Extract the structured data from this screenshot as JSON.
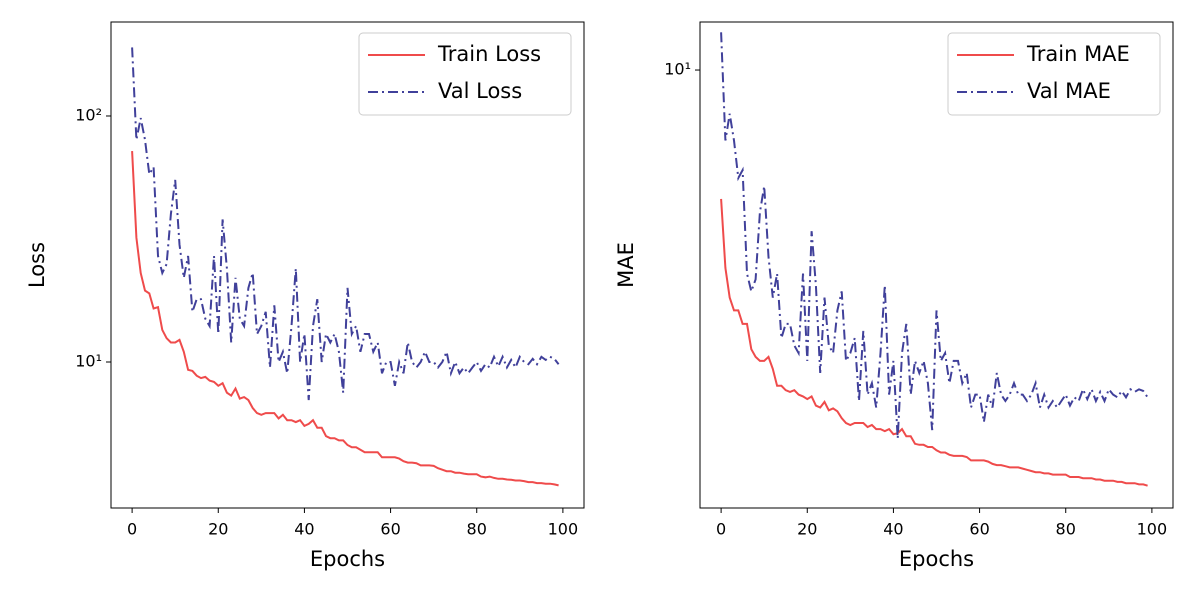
{
  "chart_data": [
    {
      "type": "line",
      "xlabel": "Epochs",
      "ylabel": "Loss",
      "log_y": true,
      "legend": "upper right",
      "xlim": [
        -4.9,
        104.9
      ],
      "ylim": [
        2.55,
        241
      ],
      "xticks": [
        0,
        20,
        40,
        60,
        80,
        100
      ],
      "yticks": [
        {
          "value": 10,
          "label": "10¹"
        },
        {
          "value": 100,
          "label": "10²"
        }
      ],
      "x": [
        0,
        1,
        2,
        3,
        4,
        5,
        6,
        7,
        8,
        9,
        10,
        11,
        12,
        13,
        14,
        15,
        16,
        17,
        18,
        19,
        20,
        21,
        22,
        23,
        24,
        25,
        26,
        27,
        28,
        29,
        30,
        31,
        32,
        33,
        34,
        35,
        36,
        37,
        38,
        39,
        40,
        41,
        42,
        43,
        44,
        45,
        46,
        47,
        48,
        49,
        50,
        51,
        52,
        53,
        54,
        55,
        56,
        57,
        58,
        59,
        60,
        61,
        62,
        63,
        64,
        65,
        66,
        67,
        68,
        69,
        70,
        71,
        72,
        73,
        74,
        75,
        76,
        77,
        78,
        79,
        80,
        81,
        82,
        83,
        84,
        85,
        86,
        87,
        88,
        89,
        90,
        91,
        92,
        93,
        94,
        95,
        96,
        97,
        98,
        99
      ],
      "series": [
        {
          "name": "Train Loss",
          "color": "#ef4b4b",
          "linestyle": "solid",
          "values": [
            72,
            32,
            23,
            19.5,
            19,
            16.5,
            16.7,
            13.5,
            12.5,
            12,
            12,
            12.3,
            11,
            9.3,
            9.2,
            8.8,
            8.6,
            8.7,
            8.4,
            8.3,
            8.0,
            8.2,
            7.5,
            7.3,
            7.8,
            7.1,
            7.2,
            7.0,
            6.5,
            6.2,
            6.1,
            6.2,
            6.2,
            6.2,
            5.9,
            6.1,
            5.8,
            5.8,
            5.7,
            5.8,
            5.5,
            5.6,
            5.8,
            5.4,
            5.4,
            5.0,
            4.9,
            4.9,
            4.8,
            4.8,
            4.6,
            4.5,
            4.5,
            4.4,
            4.3,
            4.3,
            4.3,
            4.3,
            4.1,
            4.1,
            4.1,
            4.1,
            4.05,
            3.95,
            3.9,
            3.9,
            3.88,
            3.8,
            3.8,
            3.8,
            3.78,
            3.7,
            3.65,
            3.6,
            3.6,
            3.55,
            3.55,
            3.52,
            3.5,
            3.5,
            3.5,
            3.42,
            3.4,
            3.42,
            3.38,
            3.35,
            3.35,
            3.33,
            3.32,
            3.3,
            3.3,
            3.28,
            3.25,
            3.25,
            3.22,
            3.22,
            3.2,
            3.2,
            3.18,
            3.15
          ]
        },
        {
          "name": "Val Loss",
          "color": "#40409a",
          "linestyle": "dashdot",
          "values": [
            190,
            80,
            98,
            80,
            58,
            62,
            27,
            23,
            25,
            40,
            55,
            30,
            22,
            27,
            16,
            18,
            18,
            15,
            14,
            27,
            13,
            38,
            24,
            12,
            22,
            15,
            14,
            20,
            23,
            13,
            14,
            16,
            9.5,
            17,
            10,
            11,
            9.0,
            14,
            24,
            10,
            13,
            7.0,
            14,
            18,
            10,
            13,
            12,
            13,
            11,
            7.5,
            20,
            13,
            14,
            11,
            13,
            13,
            11,
            12,
            9,
            10,
            10,
            8,
            10,
            9,
            12,
            10,
            9.5,
            10,
            11,
            10,
            10,
            9.5,
            10,
            11,
            9,
            10,
            9,
            9.5,
            9,
            9.5,
            10,
            9.2,
            9.8,
            9.5,
            10.5,
            9.6,
            10.5,
            9.5,
            10.2,
            9.5,
            10.5,
            10,
            9.8,
            10.3,
            9.8,
            10.5,
            10.2,
            10.5,
            10.3,
            9.8
          ]
        }
      ]
    },
    {
      "type": "line",
      "xlabel": "Epochs",
      "ylabel": "MAE",
      "log_y": true,
      "legend": "upper right",
      "xlim": [
        -4.9,
        104.9
      ],
      "ylim": [
        1.97,
        11.95
      ],
      "xticks": [
        0,
        20,
        40,
        60,
        80,
        100
      ],
      "yticks": [
        {
          "value": 10,
          "label": "10¹"
        }
      ],
      "x": [
        0,
        1,
        2,
        3,
        4,
        5,
        6,
        7,
        8,
        9,
        10,
        11,
        12,
        13,
        14,
        15,
        16,
        17,
        18,
        19,
        20,
        21,
        22,
        23,
        24,
        25,
        26,
        27,
        28,
        29,
        30,
        31,
        32,
        33,
        34,
        35,
        36,
        37,
        38,
        39,
        40,
        41,
        42,
        43,
        44,
        45,
        46,
        47,
        48,
        49,
        50,
        51,
        52,
        53,
        54,
        55,
        56,
        57,
        58,
        59,
        60,
        61,
        62,
        63,
        64,
        65,
        66,
        67,
        68,
        69,
        70,
        71,
        72,
        73,
        74,
        75,
        76,
        77,
        78,
        79,
        80,
        81,
        82,
        83,
        84,
        85,
        86,
        87,
        88,
        89,
        90,
        91,
        92,
        93,
        94,
        95,
        96,
        97,
        98,
        99
      ],
      "series": [
        {
          "name": "Train MAE",
          "color": "#ef4b4b",
          "linestyle": "solid",
          "values": [
            6.2,
            4.8,
            4.3,
            4.1,
            4.1,
            3.9,
            3.9,
            3.55,
            3.45,
            3.4,
            3.4,
            3.45,
            3.3,
            3.1,
            3.1,
            3.05,
            3.03,
            3.05,
            3.0,
            2.98,
            2.95,
            2.98,
            2.88,
            2.86,
            2.92,
            2.83,
            2.85,
            2.82,
            2.75,
            2.7,
            2.68,
            2.7,
            2.7,
            2.7,
            2.66,
            2.68,
            2.64,
            2.64,
            2.62,
            2.64,
            2.59,
            2.6,
            2.64,
            2.57,
            2.57,
            2.5,
            2.49,
            2.49,
            2.47,
            2.47,
            2.44,
            2.42,
            2.42,
            2.4,
            2.39,
            2.39,
            2.39,
            2.38,
            2.35,
            2.35,
            2.35,
            2.35,
            2.34,
            2.32,
            2.31,
            2.31,
            2.3,
            2.29,
            2.29,
            2.29,
            2.28,
            2.27,
            2.26,
            2.25,
            2.25,
            2.24,
            2.24,
            2.23,
            2.23,
            2.23,
            2.23,
            2.21,
            2.21,
            2.21,
            2.2,
            2.2,
            2.2,
            2.19,
            2.19,
            2.18,
            2.18,
            2.18,
            2.17,
            2.17,
            2.16,
            2.16,
            2.16,
            2.15,
            2.15,
            2.14
          ]
        },
        {
          "name": "Val MAE",
          "color": "#40409a",
          "linestyle": "dashdot",
          "values": [
            11.5,
            7.7,
            8.5,
            7.7,
            6.7,
            6.9,
            4.7,
            4.4,
            4.6,
            5.9,
            6.5,
            5.0,
            4.3,
            4.7,
            3.7,
            3.9,
            3.9,
            3.6,
            3.5,
            4.7,
            3.4,
            5.5,
            4.5,
            3.25,
            4.3,
            3.6,
            3.5,
            4.1,
            4.4,
            3.4,
            3.5,
            3.7,
            2.93,
            3.8,
            3.0,
            3.13,
            2.86,
            3.5,
            4.5,
            3.0,
            3.4,
            2.55,
            3.5,
            3.9,
            3.0,
            3.4,
            3.25,
            3.4,
            3.13,
            2.63,
            4.1,
            3.4,
            3.5,
            3.13,
            3.4,
            3.4,
            3.13,
            3.25,
            2.86,
            3.0,
            3.0,
            2.71,
            3.0,
            2.86,
            3.25,
            3.0,
            2.93,
            3.0,
            3.13,
            3.0,
            3.0,
            2.93,
            3.0,
            3.13,
            2.86,
            3.0,
            2.86,
            2.93,
            2.86,
            2.93,
            3.0,
            2.88,
            2.97,
            2.93,
            3.06,
            2.95,
            3.06,
            2.93,
            3.03,
            2.93,
            3.06,
            3.0,
            2.97,
            3.04,
            2.97,
            3.06,
            3.03,
            3.06,
            3.04,
            2.97
          ]
        }
      ]
    }
  ]
}
